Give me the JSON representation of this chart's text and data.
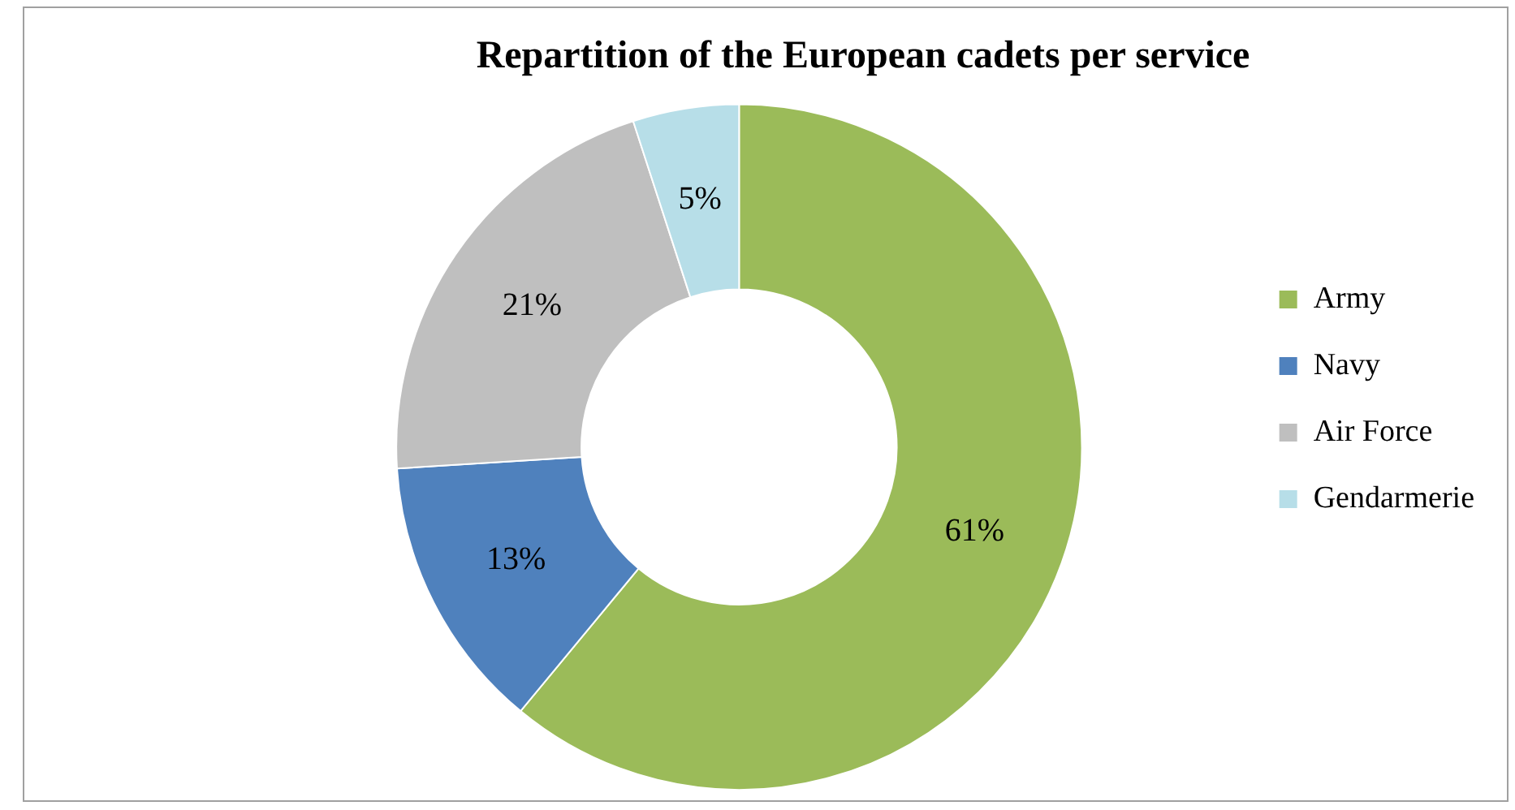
{
  "chart_data": {
    "type": "donut",
    "title": "Repartition of the European cadets per service",
    "categories": [
      "Army",
      "Navy",
      "Air Force",
      "Gendarmerie"
    ],
    "values": [
      61,
      13,
      21,
      5
    ],
    "colors": [
      "#9bbb59",
      "#4f81bd",
      "#bfbfbf",
      "#b7dee8"
    ],
    "value_labels": [
      "61%",
      "13%",
      "21%",
      "5%"
    ],
    "legend": "right"
  }
}
